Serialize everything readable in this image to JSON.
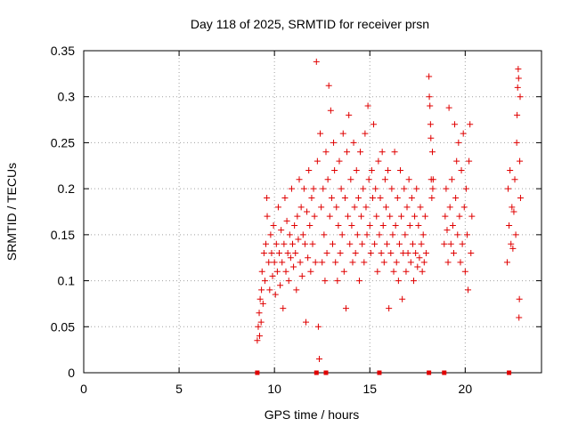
{
  "chart_data": {
    "type": "scatter",
    "title": "Day 118 of 2025, SRMTID for receiver prsn",
    "xlabel": "GPS time / hours",
    "ylabel": "SRMTID / TECUs",
    "xlim": [
      0,
      24
    ],
    "ylim": [
      0,
      0.35
    ],
    "x_ticks": [
      0,
      5,
      10,
      15,
      20
    ],
    "y_ticks": [
      0,
      0.05,
      0.1,
      0.15,
      0.2,
      0.25,
      0.3,
      0.35
    ],
    "x_tick_labels": [
      "0",
      "5",
      "10",
      "15",
      "20"
    ],
    "y_tick_labels": [
      "0",
      "0.05",
      "0.1",
      "0.15",
      "0.2",
      "0.25",
      "0.3",
      "0.35"
    ],
    "grid": true,
    "marker": "+",
    "color": "#e00000",
    "series": [
      {
        "name": "prsn",
        "points": [
          [
            9.1,
            0.035
          ],
          [
            9.15,
            0.05
          ],
          [
            9.2,
            0.065
          ],
          [
            9.22,
            0.04
          ],
          [
            9.25,
            0.08
          ],
          [
            9.3,
            0.055
          ],
          [
            9.32,
            0.09
          ],
          [
            9.35,
            0.11
          ],
          [
            9.4,
            0.075
          ],
          [
            9.45,
            0.13
          ],
          [
            9.5,
            0.1
          ],
          [
            9.55,
            0.14
          ],
          [
            9.6,
            0.19
          ],
          [
            9.62,
            0.17
          ],
          [
            9.7,
            0.12
          ],
          [
            9.75,
            0.09
          ],
          [
            9.8,
            0.15
          ],
          [
            9.85,
            0.13
          ],
          [
            9.9,
            0.105
          ],
          [
            9.95,
            0.16
          ],
          [
            10.0,
            0.12
          ],
          [
            10.05,
            0.085
          ],
          [
            10.1,
            0.14
          ],
          [
            10.15,
            0.11
          ],
          [
            10.2,
            0.18
          ],
          [
            10.25,
            0.13
          ],
          [
            10.3,
            0.095
          ],
          [
            10.35,
            0.155
          ],
          [
            10.4,
            0.12
          ],
          [
            10.45,
            0.07
          ],
          [
            10.5,
            0.14
          ],
          [
            10.55,
            0.19
          ],
          [
            10.6,
            0.11
          ],
          [
            10.65,
            0.165
          ],
          [
            10.7,
            0.13
          ],
          [
            10.75,
            0.1
          ],
          [
            10.8,
            0.15
          ],
          [
            10.85,
            0.125
          ],
          [
            10.9,
            0.2
          ],
          [
            10.95,
            0.14
          ],
          [
            11.0,
            0.115
          ],
          [
            11.05,
            0.16
          ],
          [
            11.1,
            0.13
          ],
          [
            11.15,
            0.09
          ],
          [
            11.2,
            0.17
          ],
          [
            11.25,
            0.145
          ],
          [
            11.3,
            0.21
          ],
          [
            11.35,
            0.12
          ],
          [
            11.4,
            0.18
          ],
          [
            11.45,
            0.105
          ],
          [
            11.5,
            0.15
          ],
          [
            11.55,
            0.2
          ],
          [
            11.6,
            0.14
          ],
          [
            11.65,
            0.055
          ],
          [
            11.7,
            0.175
          ],
          [
            11.75,
            0.125
          ],
          [
            11.8,
            0.22
          ],
          [
            11.85,
            0.16
          ],
          [
            11.9,
            0.11
          ],
          [
            11.95,
            0.19
          ],
          [
            12.0,
            0.14
          ],
          [
            12.05,
            0.2
          ],
          [
            12.1,
            0.17
          ],
          [
            12.15,
            0.12
          ],
          [
            12.2,
            0.338
          ],
          [
            12.25,
            0.23
          ],
          [
            12.3,
            0.05
          ],
          [
            12.35,
            0.015
          ],
          [
            12.4,
            0.26
          ],
          [
            12.45,
            0.18
          ],
          [
            12.5,
            0.12
          ],
          [
            12.55,
            0.2
          ],
          [
            12.6,
            0.15
          ],
          [
            12.65,
            0.1
          ],
          [
            12.7,
            0.24
          ],
          [
            12.75,
            0.13
          ],
          [
            12.8,
            0.21
          ],
          [
            12.85,
            0.312
          ],
          [
            12.9,
            0.17
          ],
          [
            12.95,
            0.285
          ],
          [
            13.0,
            0.19
          ],
          [
            13.05,
            0.14
          ],
          [
            13.1,
            0.25
          ],
          [
            13.15,
            0.22
          ],
          [
            13.2,
            0.12
          ],
          [
            13.25,
            0.18
          ],
          [
            13.3,
            0.1
          ],
          [
            13.35,
            0.16
          ],
          [
            13.4,
            0.23
          ],
          [
            13.45,
            0.13
          ],
          [
            13.5,
            0.2
          ],
          [
            13.55,
            0.15
          ],
          [
            13.6,
            0.26
          ],
          [
            13.65,
            0.11
          ],
          [
            13.7,
            0.19
          ],
          [
            13.75,
            0.07
          ],
          [
            13.8,
            0.24
          ],
          [
            13.85,
            0.17
          ],
          [
            13.9,
            0.28
          ],
          [
            13.95,
            0.14
          ],
          [
            14.0,
            0.21
          ],
          [
            14.05,
            0.16
          ],
          [
            14.1,
            0.12
          ],
          [
            14.15,
            0.25
          ],
          [
            14.2,
            0.18
          ],
          [
            14.25,
            0.13
          ],
          [
            14.3,
            0.22
          ],
          [
            14.35,
            0.15
          ],
          [
            14.4,
            0.19
          ],
          [
            14.45,
            0.1
          ],
          [
            14.5,
            0.24
          ],
          [
            14.55,
            0.17
          ],
          [
            14.6,
            0.14
          ],
          [
            14.65,
            0.2
          ],
          [
            14.7,
            0.12
          ],
          [
            14.75,
            0.26
          ],
          [
            14.8,
            0.18
          ],
          [
            14.85,
            0.15
          ],
          [
            14.9,
            0.29
          ],
          [
            14.95,
            0.21
          ],
          [
            15.0,
            0.16
          ],
          [
            15.05,
            0.13
          ],
          [
            15.1,
            0.22
          ],
          [
            15.15,
            0.19
          ],
          [
            15.2,
            0.27
          ],
          [
            15.25,
            0.14
          ],
          [
            15.3,
            0.2
          ],
          [
            15.35,
            0.17
          ],
          [
            15.4,
            0.11
          ],
          [
            15.45,
            0.23
          ],
          [
            15.5,
            0.15
          ],
          [
            15.55,
            0.19
          ],
          [
            15.6,
            0.13
          ],
          [
            15.65,
            0.24
          ],
          [
            15.7,
            0.16
          ],
          [
            15.75,
            0.12
          ],
          [
            15.8,
            0.21
          ],
          [
            15.85,
            0.18
          ],
          [
            15.9,
            0.14
          ],
          [
            15.95,
            0.22
          ],
          [
            16.0,
            0.07
          ],
          [
            16.05,
            0.17
          ],
          [
            16.1,
            0.13
          ],
          [
            16.15,
            0.2
          ],
          [
            16.2,
            0.15
          ],
          [
            16.25,
            0.11
          ],
          [
            16.3,
            0.24
          ],
          [
            16.35,
            0.16
          ],
          [
            16.4,
            0.12
          ],
          [
            16.45,
            0.19
          ],
          [
            16.5,
            0.1
          ],
          [
            16.55,
            0.14
          ],
          [
            16.6,
            0.22
          ],
          [
            16.65,
            0.17
          ],
          [
            16.7,
            0.08
          ],
          [
            16.75,
            0.13
          ],
          [
            16.8,
            0.2
          ],
          [
            16.85,
            0.15
          ],
          [
            16.9,
            0.11
          ],
          [
            16.95,
            0.18
          ],
          [
            17.0,
            0.13
          ],
          [
            17.05,
            0.21
          ],
          [
            17.1,
            0.16
          ],
          [
            17.15,
            0.12
          ],
          [
            17.2,
            0.19
          ],
          [
            17.25,
            0.14
          ],
          [
            17.3,
            0.1
          ],
          [
            17.35,
            0.17
          ],
          [
            17.4,
            0.13
          ],
          [
            17.45,
            0.2
          ],
          [
            17.5,
            0.115
          ],
          [
            17.55,
            0.16
          ],
          [
            17.6,
            0.125
          ],
          [
            17.65,
            0.18
          ],
          [
            17.7,
            0.14
          ],
          [
            17.75,
            0.11
          ],
          [
            17.8,
            0.15
          ],
          [
            17.85,
            0.12
          ],
          [
            17.9,
            0.17
          ],
          [
            17.95,
            0.13
          ],
          [
            18.1,
            0.322
          ],
          [
            18.12,
            0.3
          ],
          [
            18.15,
            0.29
          ],
          [
            18.18,
            0.27
          ],
          [
            18.2,
            0.255
          ],
          [
            18.22,
            0.21
          ],
          [
            18.25,
            0.19
          ],
          [
            18.28,
            0.24
          ],
          [
            18.3,
            0.2
          ],
          [
            18.32,
            0.21
          ],
          [
            18.9,
            0.14
          ],
          [
            18.95,
            0.17
          ],
          [
            19.0,
            0.2
          ],
          [
            19.05,
            0.155
          ],
          [
            19.1,
            0.12
          ],
          [
            19.15,
            0.288
          ],
          [
            19.2,
            0.18
          ],
          [
            19.25,
            0.14
          ],
          [
            19.3,
            0.21
          ],
          [
            19.35,
            0.16
          ],
          [
            19.4,
            0.13
          ],
          [
            19.45,
            0.27
          ],
          [
            19.5,
            0.19
          ],
          [
            19.55,
            0.23
          ],
          [
            19.6,
            0.15
          ],
          [
            19.65,
            0.25
          ],
          [
            19.7,
            0.17
          ],
          [
            19.75,
            0.12
          ],
          [
            19.8,
            0.22
          ],
          [
            19.85,
            0.14
          ],
          [
            19.9,
            0.26
          ],
          [
            19.95,
            0.18
          ],
          [
            20.0,
            0.11
          ],
          [
            20.05,
            0.2
          ],
          [
            20.1,
            0.15
          ],
          [
            20.15,
            0.09
          ],
          [
            20.2,
            0.23
          ],
          [
            20.25,
            0.27
          ],
          [
            20.3,
            0.13
          ],
          [
            20.35,
            0.17
          ],
          [
            22.2,
            0.12
          ],
          [
            22.25,
            0.2
          ],
          [
            22.3,
            0.16
          ],
          [
            22.35,
            0.22
          ],
          [
            22.4,
            0.14
          ],
          [
            22.45,
            0.18
          ],
          [
            22.5,
            0.135
          ],
          [
            22.55,
            0.175
          ],
          [
            22.6,
            0.21
          ],
          [
            22.65,
            0.15
          ],
          [
            22.7,
            0.25
          ],
          [
            22.72,
            0.28
          ],
          [
            22.75,
            0.31
          ],
          [
            22.78,
            0.33
          ],
          [
            22.8,
            0.32
          ],
          [
            22.82,
            0.06
          ],
          [
            22.84,
            0.08
          ],
          [
            22.86,
            0.23
          ],
          [
            22.88,
            0.3
          ],
          [
            22.9,
            0.19
          ]
        ]
      }
    ],
    "baseline_marks_x": [
      9.1,
      12.2,
      12.7,
      15.5,
      18.1,
      18.9,
      22.3
    ],
    "baseline_marks_y": 0
  }
}
